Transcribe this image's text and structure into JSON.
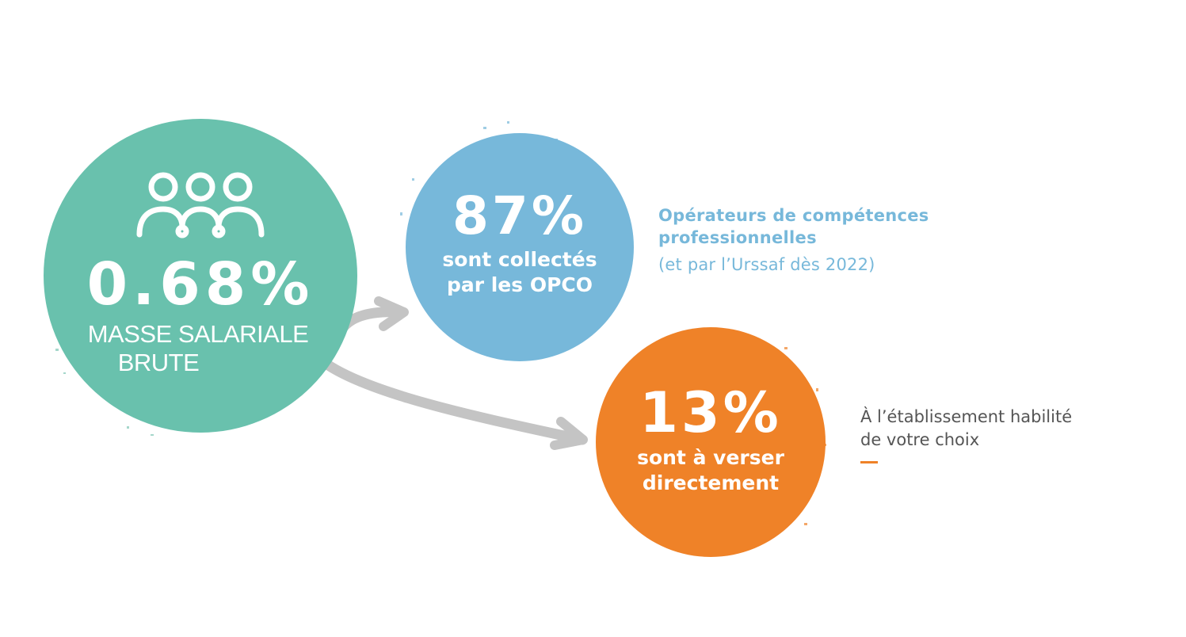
{
  "main": {
    "percentage": "0.68%",
    "label_line1": "MASSE SALARIALE",
    "label_line2": "BRUTE",
    "icon": "people-group-icon",
    "color": "#69c1ad"
  },
  "opco": {
    "percentage": "87%",
    "line1": "sont collectés",
    "line2": "par les OPCO",
    "color": "#77b8da",
    "description_line1": "Opérateurs de compétences",
    "description_line2": "professionnelles",
    "note": "(et par l’Urssaf dès 2022)"
  },
  "direct": {
    "percentage": "13%",
    "line1": "sont à verser",
    "line2": "directement",
    "color": "#ef8228",
    "description_line1": "À l’établissement habilité",
    "description_line2": "de votre choix"
  },
  "arrow_color": "#c4c4c4"
}
